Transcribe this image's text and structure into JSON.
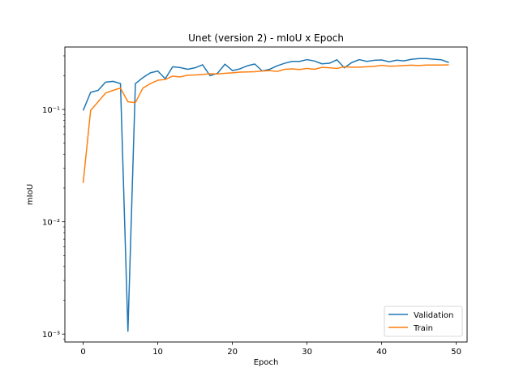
{
  "chart_data": {
    "type": "line",
    "title": "Unet (version 2) - mIoU x Epoch",
    "xlabel": "Epoch",
    "ylabel": "mIoU",
    "xlim": [
      -2.45,
      51.45
    ],
    "xticks": [
      0,
      10,
      20,
      30,
      40,
      50
    ],
    "xtick_labels": [
      "0",
      "10",
      "20",
      "30",
      "40",
      "50"
    ],
    "yscale": "log",
    "ylim": [
      0.00085,
      0.36
    ],
    "yticks": [
      0.001,
      0.01,
      0.1
    ],
    "ytick_labels": [
      "10⁻³",
      "10⁻²",
      "10⁻¹"
    ],
    "grid": false,
    "legend_position": "lower-right",
    "series": [
      {
        "name": "Validation",
        "color": "#1f77b4",
        "x": [
          0,
          1,
          2,
          3,
          4,
          5,
          6,
          7,
          8,
          9,
          10,
          11,
          12,
          13,
          14,
          15,
          16,
          17,
          18,
          19,
          20,
          21,
          22,
          23,
          24,
          25,
          26,
          27,
          28,
          29,
          30,
          31,
          32,
          33,
          34,
          35,
          36,
          37,
          38,
          39,
          40,
          41,
          42,
          43,
          44,
          45,
          46,
          47,
          48,
          49
        ],
        "values": [
          0.098,
          0.142,
          0.148,
          0.175,
          0.178,
          0.17,
          0.00106,
          0.17,
          0.192,
          0.212,
          0.22,
          0.188,
          0.24,
          0.236,
          0.228,
          0.235,
          0.25,
          0.2,
          0.21,
          0.253,
          0.222,
          0.23,
          0.245,
          0.254,
          0.22,
          0.228,
          0.245,
          0.258,
          0.268,
          0.268,
          0.278,
          0.27,
          0.255,
          0.258,
          0.277,
          0.235,
          0.262,
          0.278,
          0.268,
          0.274,
          0.276,
          0.266,
          0.275,
          0.271,
          0.28,
          0.284,
          0.284,
          0.28,
          0.277,
          0.262
        ]
      },
      {
        "name": "Train",
        "color": "#ff7f0e",
        "x": [
          0,
          1,
          2,
          3,
          4,
          5,
          6,
          7,
          8,
          9,
          10,
          11,
          12,
          13,
          14,
          15,
          16,
          17,
          18,
          19,
          20,
          21,
          22,
          23,
          24,
          25,
          26,
          27,
          28,
          29,
          30,
          31,
          32,
          33,
          34,
          35,
          36,
          37,
          38,
          39,
          40,
          41,
          42,
          43,
          44,
          45,
          46,
          47,
          48,
          49
        ],
        "values": [
          0.0222,
          0.098,
          0.117,
          0.14,
          0.148,
          0.155,
          0.117,
          0.115,
          0.155,
          0.17,
          0.182,
          0.185,
          0.198,
          0.195,
          0.202,
          0.203,
          0.205,
          0.208,
          0.207,
          0.21,
          0.212,
          0.215,
          0.216,
          0.217,
          0.22,
          0.222,
          0.218,
          0.228,
          0.23,
          0.227,
          0.232,
          0.228,
          0.237,
          0.235,
          0.232,
          0.24,
          0.238,
          0.238,
          0.24,
          0.242,
          0.247,
          0.243,
          0.244,
          0.246,
          0.248,
          0.246,
          0.249,
          0.249,
          0.249,
          0.25
        ]
      }
    ]
  }
}
